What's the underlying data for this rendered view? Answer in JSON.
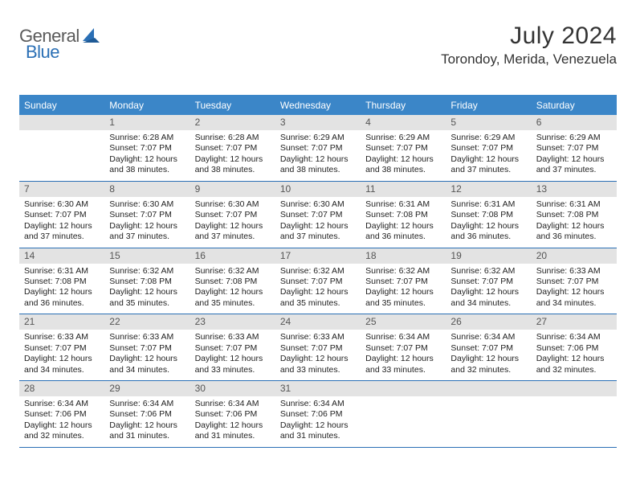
{
  "brand": {
    "word1": "General",
    "word2": "Blue"
  },
  "title": "July 2024",
  "location": "Torondoy, Merida, Venezuela",
  "colors": {
    "headerBar": "#3b86c8",
    "weekBorder": "#2a6fb5",
    "dayNumBg": "#e3e3e3",
    "text": "#222222",
    "logoGray": "#5a5a5a",
    "logoBlue": "#2a6fb5"
  },
  "weekdays": [
    "Sunday",
    "Monday",
    "Tuesday",
    "Wednesday",
    "Thursday",
    "Friday",
    "Saturday"
  ],
  "weeks": [
    [
      {
        "num": "",
        "lines": []
      },
      {
        "num": "1",
        "lines": [
          "Sunrise: 6:28 AM",
          "Sunset: 7:07 PM",
          "Daylight: 12 hours",
          "and 38 minutes."
        ]
      },
      {
        "num": "2",
        "lines": [
          "Sunrise: 6:28 AM",
          "Sunset: 7:07 PM",
          "Daylight: 12 hours",
          "and 38 minutes."
        ]
      },
      {
        "num": "3",
        "lines": [
          "Sunrise: 6:29 AM",
          "Sunset: 7:07 PM",
          "Daylight: 12 hours",
          "and 38 minutes."
        ]
      },
      {
        "num": "4",
        "lines": [
          "Sunrise: 6:29 AM",
          "Sunset: 7:07 PM",
          "Daylight: 12 hours",
          "and 38 minutes."
        ]
      },
      {
        "num": "5",
        "lines": [
          "Sunrise: 6:29 AM",
          "Sunset: 7:07 PM",
          "Daylight: 12 hours",
          "and 37 minutes."
        ]
      },
      {
        "num": "6",
        "lines": [
          "Sunrise: 6:29 AM",
          "Sunset: 7:07 PM",
          "Daylight: 12 hours",
          "and 37 minutes."
        ]
      }
    ],
    [
      {
        "num": "7",
        "lines": [
          "Sunrise: 6:30 AM",
          "Sunset: 7:07 PM",
          "Daylight: 12 hours",
          "and 37 minutes."
        ]
      },
      {
        "num": "8",
        "lines": [
          "Sunrise: 6:30 AM",
          "Sunset: 7:07 PM",
          "Daylight: 12 hours",
          "and 37 minutes."
        ]
      },
      {
        "num": "9",
        "lines": [
          "Sunrise: 6:30 AM",
          "Sunset: 7:07 PM",
          "Daylight: 12 hours",
          "and 37 minutes."
        ]
      },
      {
        "num": "10",
        "lines": [
          "Sunrise: 6:30 AM",
          "Sunset: 7:07 PM",
          "Daylight: 12 hours",
          "and 37 minutes."
        ]
      },
      {
        "num": "11",
        "lines": [
          "Sunrise: 6:31 AM",
          "Sunset: 7:08 PM",
          "Daylight: 12 hours",
          "and 36 minutes."
        ]
      },
      {
        "num": "12",
        "lines": [
          "Sunrise: 6:31 AM",
          "Sunset: 7:08 PM",
          "Daylight: 12 hours",
          "and 36 minutes."
        ]
      },
      {
        "num": "13",
        "lines": [
          "Sunrise: 6:31 AM",
          "Sunset: 7:08 PM",
          "Daylight: 12 hours",
          "and 36 minutes."
        ]
      }
    ],
    [
      {
        "num": "14",
        "lines": [
          "Sunrise: 6:31 AM",
          "Sunset: 7:08 PM",
          "Daylight: 12 hours",
          "and 36 minutes."
        ]
      },
      {
        "num": "15",
        "lines": [
          "Sunrise: 6:32 AM",
          "Sunset: 7:08 PM",
          "Daylight: 12 hours",
          "and 35 minutes."
        ]
      },
      {
        "num": "16",
        "lines": [
          "Sunrise: 6:32 AM",
          "Sunset: 7:08 PM",
          "Daylight: 12 hours",
          "and 35 minutes."
        ]
      },
      {
        "num": "17",
        "lines": [
          "Sunrise: 6:32 AM",
          "Sunset: 7:07 PM",
          "Daylight: 12 hours",
          "and 35 minutes."
        ]
      },
      {
        "num": "18",
        "lines": [
          "Sunrise: 6:32 AM",
          "Sunset: 7:07 PM",
          "Daylight: 12 hours",
          "and 35 minutes."
        ]
      },
      {
        "num": "19",
        "lines": [
          "Sunrise: 6:32 AM",
          "Sunset: 7:07 PM",
          "Daylight: 12 hours",
          "and 34 minutes."
        ]
      },
      {
        "num": "20",
        "lines": [
          "Sunrise: 6:33 AM",
          "Sunset: 7:07 PM",
          "Daylight: 12 hours",
          "and 34 minutes."
        ]
      }
    ],
    [
      {
        "num": "21",
        "lines": [
          "Sunrise: 6:33 AM",
          "Sunset: 7:07 PM",
          "Daylight: 12 hours",
          "and 34 minutes."
        ]
      },
      {
        "num": "22",
        "lines": [
          "Sunrise: 6:33 AM",
          "Sunset: 7:07 PM",
          "Daylight: 12 hours",
          "and 34 minutes."
        ]
      },
      {
        "num": "23",
        "lines": [
          "Sunrise: 6:33 AM",
          "Sunset: 7:07 PM",
          "Daylight: 12 hours",
          "and 33 minutes."
        ]
      },
      {
        "num": "24",
        "lines": [
          "Sunrise: 6:33 AM",
          "Sunset: 7:07 PM",
          "Daylight: 12 hours",
          "and 33 minutes."
        ]
      },
      {
        "num": "25",
        "lines": [
          "Sunrise: 6:34 AM",
          "Sunset: 7:07 PM",
          "Daylight: 12 hours",
          "and 33 minutes."
        ]
      },
      {
        "num": "26",
        "lines": [
          "Sunrise: 6:34 AM",
          "Sunset: 7:07 PM",
          "Daylight: 12 hours",
          "and 32 minutes."
        ]
      },
      {
        "num": "27",
        "lines": [
          "Sunrise: 6:34 AM",
          "Sunset: 7:06 PM",
          "Daylight: 12 hours",
          "and 32 minutes."
        ]
      }
    ],
    [
      {
        "num": "28",
        "lines": [
          "Sunrise: 6:34 AM",
          "Sunset: 7:06 PM",
          "Daylight: 12 hours",
          "and 32 minutes."
        ]
      },
      {
        "num": "29",
        "lines": [
          "Sunrise: 6:34 AM",
          "Sunset: 7:06 PM",
          "Daylight: 12 hours",
          "and 31 minutes."
        ]
      },
      {
        "num": "30",
        "lines": [
          "Sunrise: 6:34 AM",
          "Sunset: 7:06 PM",
          "Daylight: 12 hours",
          "and 31 minutes."
        ]
      },
      {
        "num": "31",
        "lines": [
          "Sunrise: 6:34 AM",
          "Sunset: 7:06 PM",
          "Daylight: 12 hours",
          "and 31 minutes."
        ]
      },
      {
        "num": "",
        "lines": []
      },
      {
        "num": "",
        "lines": []
      },
      {
        "num": "",
        "lines": []
      }
    ]
  ]
}
